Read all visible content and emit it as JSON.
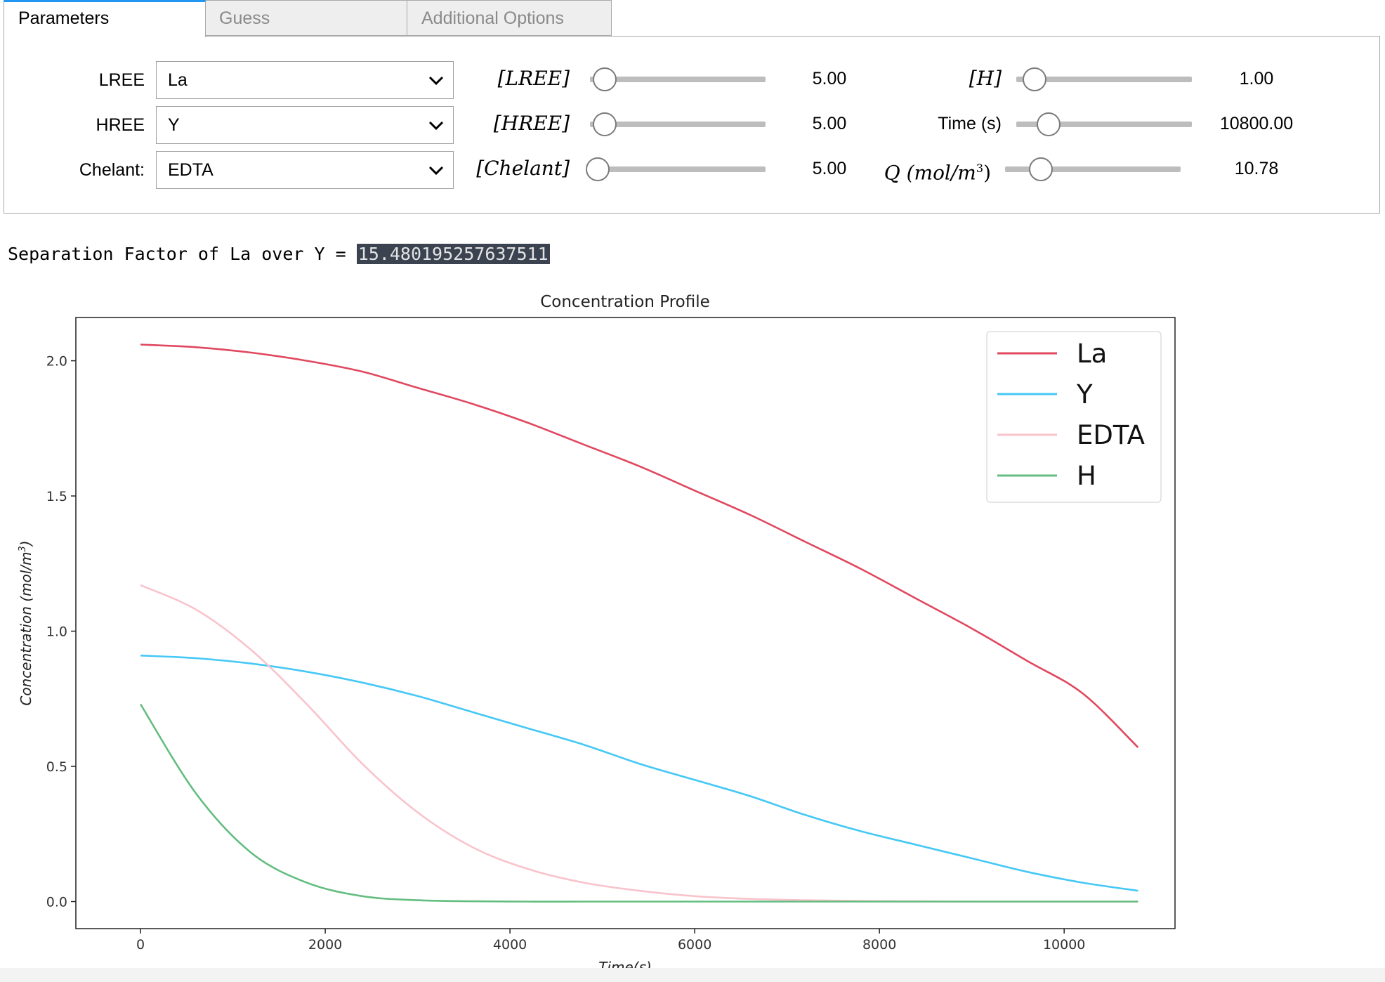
{
  "tabs": [
    {
      "label": "Parameters",
      "active": true
    },
    {
      "label": "Guess",
      "active": false
    },
    {
      "label": "Additional Options",
      "active": false
    }
  ],
  "selects": {
    "lree": {
      "label": "LREE",
      "value": "La"
    },
    "hree": {
      "label": "HREE",
      "value": "Y"
    },
    "chelant": {
      "label": "Chelant:",
      "value": "EDTA"
    }
  },
  "sliders": {
    "lree_conc": {
      "label": "[LREE]",
      "value": "5.00",
      "fraction": 0.08
    },
    "hree_conc": {
      "label": "[HREE]",
      "value": "5.00",
      "fraction": 0.08
    },
    "chelant_conc": {
      "label": "[Chelant]",
      "value": "5.00",
      "fraction": 0.04
    },
    "h_conc": {
      "label": "[H]",
      "value": "1.00",
      "fraction": 0.1
    },
    "time": {
      "label": "Time (s)",
      "value": "10800.00",
      "fraction": 0.18
    },
    "q": {
      "label": "Q (mol/m",
      "label_sup": "3",
      "label_end": ")",
      "value": "10.78",
      "fraction": 0.2
    }
  },
  "separation": {
    "text": "Separation Factor of La over Y = ",
    "value": "15.480195257637511"
  },
  "colors": {
    "la": "#e0485f",
    "y": "#45c8f5",
    "edta": "#f9c3cc",
    "h": "#63bd80",
    "tab_accent": "#2196f3"
  },
  "chart_data": {
    "type": "line",
    "title": "Concentration Profile",
    "xlabel": "Time(s)",
    "ylabel": "Concentration (mol/m",
    "ylabel_sup": "3",
    "ylabel_end": ")",
    "xlim": [
      -700,
      11200
    ],
    "ylim": [
      -0.1,
      2.16
    ],
    "xticks": [
      0,
      2000,
      4000,
      6000,
      8000,
      10000
    ],
    "yticks": [
      0.0,
      0.5,
      1.0,
      1.5,
      2.0
    ],
    "legend_position": "top-right",
    "grid": false,
    "x": [
      0,
      600,
      1200,
      1800,
      2400,
      3000,
      3600,
      4200,
      4800,
      5400,
      6000,
      6600,
      7200,
      7800,
      8400,
      9000,
      9600,
      10200,
      10800
    ],
    "series": [
      {
        "name": "La",
        "color": "#e0485f",
        "values": [
          2.06,
          2.05,
          2.03,
          2.0,
          1.96,
          1.9,
          1.84,
          1.77,
          1.69,
          1.61,
          1.52,
          1.43,
          1.33,
          1.23,
          1.12,
          1.01,
          0.89,
          0.77,
          0.57
        ]
      },
      {
        "name": "Y",
        "color": "#45c8f5",
        "values": [
          0.91,
          0.9,
          0.88,
          0.85,
          0.81,
          0.76,
          0.7,
          0.64,
          0.58,
          0.51,
          0.45,
          0.39,
          0.32,
          0.26,
          0.21,
          0.16,
          0.11,
          0.07,
          0.04
        ]
      },
      {
        "name": "EDTA",
        "color": "#f9c3cc",
        "values": [
          1.17,
          1.08,
          0.93,
          0.73,
          0.51,
          0.33,
          0.2,
          0.12,
          0.07,
          0.04,
          0.02,
          0.01,
          0.005,
          0.002,
          0.001,
          0.0,
          0.0,
          0.0,
          0.0
        ]
      },
      {
        "name": "H",
        "color": "#63bd80",
        "values": [
          0.73,
          0.4,
          0.18,
          0.07,
          0.02,
          0.005,
          0.001,
          0.0,
          0.0,
          0.0,
          0.0,
          0.0,
          0.0,
          0.0,
          0.0,
          0.0,
          0.0,
          0.0,
          0.0
        ]
      }
    ]
  }
}
